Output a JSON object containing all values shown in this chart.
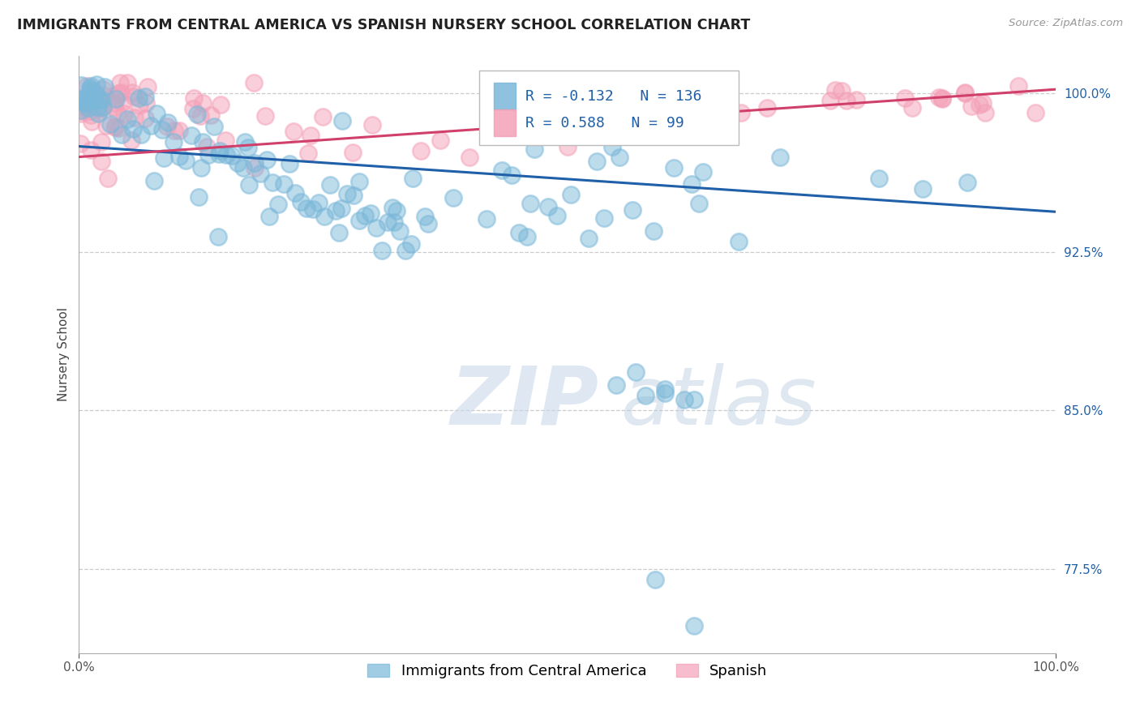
{
  "title": "IMMIGRANTS FROM CENTRAL AMERICA VS SPANISH NURSERY SCHOOL CORRELATION CHART",
  "source": "Source: ZipAtlas.com",
  "xlabel_blue": "Immigrants from Central America",
  "xlabel_pink": "Spanish",
  "ylabel": "Nursery School",
  "blue_R": -0.132,
  "blue_N": 136,
  "pink_R": 0.588,
  "pink_N": 99,
  "xlim": [
    0.0,
    1.0
  ],
  "ylim": [
    0.735,
    1.018
  ],
  "yticks": [
    0.775,
    0.85,
    0.925,
    1.0
  ],
  "ytick_labels": [
    "77.5%",
    "85.0%",
    "92.5%",
    "100.0%"
  ],
  "xtick_labels": [
    "0.0%",
    "100.0%"
  ],
  "blue_color": "#7ab8d9",
  "pink_color": "#f4a0b8",
  "blue_line_color": "#2060a8",
  "pink_line_color": "#d0406a",
  "title_fontsize": 12.5,
  "axis_label_fontsize": 11,
  "tick_fontsize": 11,
  "legend_fontsize": 13,
  "watermark_zip": "ZIP",
  "watermark_atlas": "atlas",
  "background_color": "#ffffff",
  "grid_color": "#cccccc",
  "blue_line_start_y": 0.975,
  "blue_line_end_y": 0.944,
  "pink_line_start_y": 0.97,
  "pink_line_end_y": 1.002
}
